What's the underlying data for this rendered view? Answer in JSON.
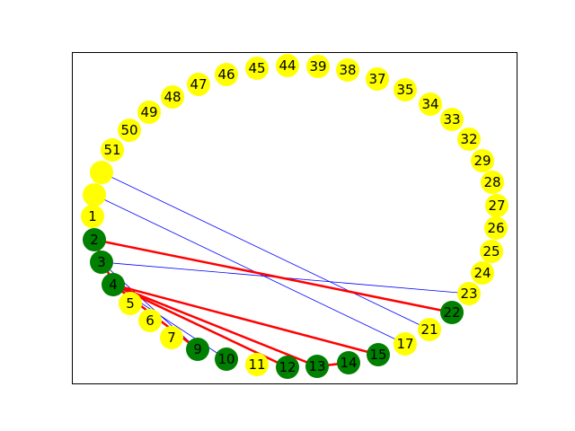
{
  "colors": {
    "yellow_node": "#ffff00",
    "green_node": "#008000",
    "red_edge": "#ff0000",
    "blue_edge": "#0000ff",
    "frame": "#000000"
  },
  "nodes": [
    {
      "id": "n-unl-a",
      "label": "",
      "color": "yellow"
    },
    {
      "id": "n-unl-b",
      "label": "",
      "color": "yellow"
    },
    {
      "id": "n1",
      "label": "1",
      "color": "yellow"
    },
    {
      "id": "n2",
      "label": "2",
      "color": "green"
    },
    {
      "id": "n3",
      "label": "3",
      "color": "green"
    },
    {
      "id": "n4",
      "label": "4",
      "color": "green"
    },
    {
      "id": "n5",
      "label": "5",
      "color": "yellow"
    },
    {
      "id": "n6",
      "label": "6",
      "color": "yellow"
    },
    {
      "id": "n7",
      "label": "7",
      "color": "yellow"
    },
    {
      "id": "n9",
      "label": "9",
      "color": "green"
    },
    {
      "id": "n10",
      "label": "10",
      "color": "green"
    },
    {
      "id": "n11",
      "label": "11",
      "color": "yellow"
    },
    {
      "id": "n12",
      "label": "12",
      "color": "green"
    },
    {
      "id": "n13",
      "label": "13",
      "color": "green"
    },
    {
      "id": "n14",
      "label": "14",
      "color": "green"
    },
    {
      "id": "n15",
      "label": "15",
      "color": "green"
    },
    {
      "id": "n17",
      "label": "17",
      "color": "yellow"
    },
    {
      "id": "n21",
      "label": "21",
      "color": "yellow"
    },
    {
      "id": "n22",
      "label": "22",
      "color": "green"
    },
    {
      "id": "n23",
      "label": "23",
      "color": "yellow"
    },
    {
      "id": "n24",
      "label": "24",
      "color": "yellow"
    },
    {
      "id": "n25",
      "label": "25",
      "color": "yellow"
    },
    {
      "id": "n26",
      "label": "26",
      "color": "yellow"
    },
    {
      "id": "n27",
      "label": "27",
      "color": "yellow"
    },
    {
      "id": "n28",
      "label": "28",
      "color": "yellow"
    },
    {
      "id": "n29",
      "label": "29",
      "color": "yellow"
    },
    {
      "id": "n32",
      "label": "32",
      "color": "yellow"
    },
    {
      "id": "n33",
      "label": "33",
      "color": "yellow"
    },
    {
      "id": "n34",
      "label": "34",
      "color": "yellow"
    },
    {
      "id": "n35",
      "label": "35",
      "color": "yellow"
    },
    {
      "id": "n37",
      "label": "37",
      "color": "yellow"
    },
    {
      "id": "n38",
      "label": "38",
      "color": "yellow"
    },
    {
      "id": "n39",
      "label": "39",
      "color": "yellow"
    },
    {
      "id": "n44",
      "label": "44",
      "color": "yellow"
    },
    {
      "id": "n45",
      "label": "45",
      "color": "yellow"
    },
    {
      "id": "n46",
      "label": "46",
      "color": "yellow"
    },
    {
      "id": "n47",
      "label": "47",
      "color": "yellow"
    },
    {
      "id": "n48",
      "label": "48",
      "color": "yellow"
    },
    {
      "id": "n49",
      "label": "49",
      "color": "yellow"
    },
    {
      "id": "n50",
      "label": "50",
      "color": "yellow"
    },
    {
      "id": "n51",
      "label": "51",
      "color": "yellow"
    }
  ],
  "edges": [
    {
      "from": "n-unl-a",
      "to": "n21",
      "color": "blue"
    },
    {
      "from": "n-unl-b",
      "to": "n17",
      "color": "blue"
    },
    {
      "from": "n3",
      "to": "n23",
      "color": "blue"
    },
    {
      "from": "n3",
      "to": "n9",
      "color": "blue"
    },
    {
      "from": "n4",
      "to": "n10",
      "color": "blue"
    },
    {
      "from": "n2",
      "to": "n22",
      "color": "red"
    },
    {
      "from": "n2",
      "to": "n4",
      "color": "red"
    },
    {
      "from": "n4",
      "to": "n15",
      "color": "red"
    },
    {
      "from": "n4",
      "to": "n13",
      "color": "red"
    },
    {
      "from": "n4",
      "to": "n12",
      "color": "red"
    },
    {
      "from": "n4",
      "to": "n9",
      "color": "red"
    },
    {
      "from": "n13",
      "to": "n14",
      "color": "red"
    }
  ]
}
